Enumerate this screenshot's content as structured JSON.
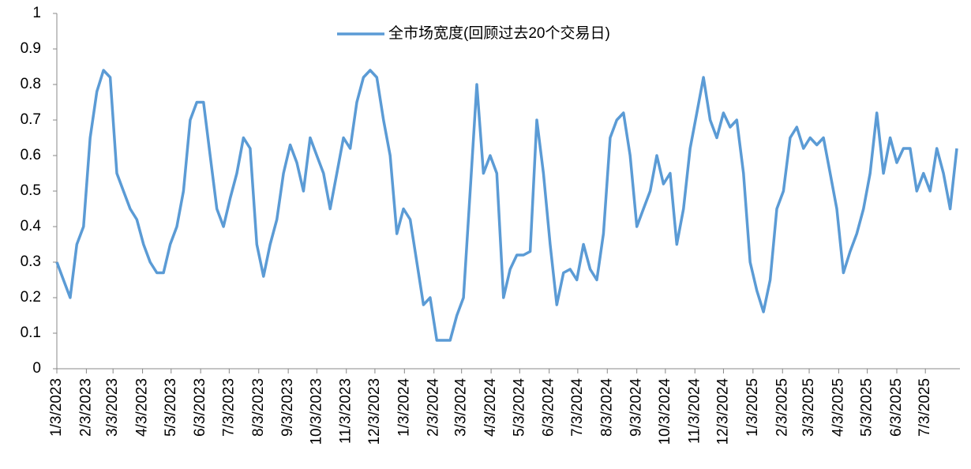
{
  "chart_data": {
    "type": "line",
    "x": [
      "1/3/2023",
      "1/10/2023",
      "1/17/2023",
      "1/24/2023",
      "1/31/2023",
      "2/7/2023",
      "2/14/2023",
      "2/21/2023",
      "2/28/2023",
      "3/7/2023",
      "3/14/2023",
      "3/21/2023",
      "3/28/2023",
      "4/4/2023",
      "4/11/2023",
      "4/18/2023",
      "4/25/2023",
      "5/2/2023",
      "5/9/2023",
      "5/16/2023",
      "5/23/2023",
      "5/30/2023",
      "6/6/2023",
      "6/13/2023",
      "6/20/2023",
      "6/27/2023",
      "7/4/2023",
      "7/11/2023",
      "7/18/2023",
      "7/25/2023",
      "8/1/2023",
      "8/8/2023",
      "8/15/2023",
      "8/22/2023",
      "8/29/2023",
      "9/5/2023",
      "9/12/2023",
      "9/19/2023",
      "9/26/2023",
      "10/3/2023",
      "10/10/2023",
      "10/17/2023",
      "10/24/2023",
      "10/31/2023",
      "11/7/2023",
      "11/14/2023",
      "11/21/2023",
      "11/28/2023",
      "12/5/2023",
      "12/12/2023",
      "12/19/2023",
      "12/26/2023",
      "1/2/2024",
      "1/9/2024",
      "1/16/2024",
      "1/23/2024",
      "1/30/2024",
      "2/6/2024",
      "2/13/2024",
      "2/20/2024",
      "2/27/2024",
      "3/5/2024",
      "3/12/2024",
      "3/19/2024",
      "3/26/2024",
      "4/2/2024",
      "4/9/2024",
      "4/16/2024",
      "4/23/2024",
      "4/30/2024",
      "5/7/2024",
      "5/14/2024",
      "5/21/2024",
      "5/28/2024",
      "6/4/2024",
      "6/11/2024",
      "6/18/2024",
      "6/25/2024",
      "7/2/2024",
      "7/9/2024",
      "7/16/2024",
      "7/23/2024",
      "7/30/2024",
      "8/6/2024",
      "8/13/2024",
      "8/20/2024",
      "8/27/2024",
      "9/3/2024",
      "9/10/2024",
      "9/17/2024",
      "9/24/2024",
      "10/1/2024",
      "10/8/2024",
      "10/15/2024",
      "10/22/2024",
      "10/29/2024",
      "11/5/2024",
      "11/12/2024",
      "11/19/2024",
      "11/26/2024",
      "12/3/2024",
      "12/10/2024",
      "12/17/2024",
      "12/24/2024",
      "12/31/2024",
      "1/7/2025",
      "1/14/2025",
      "1/21/2025",
      "1/28/2025",
      "2/4/2025",
      "2/11/2025",
      "2/18/2025",
      "2/25/2025",
      "3/4/2025",
      "3/11/2025",
      "3/18/2025",
      "3/25/2025",
      "4/1/2025",
      "4/8/2025",
      "4/15/2025",
      "4/22/2025",
      "4/29/2025",
      "5/6/2025",
      "5/13/2025",
      "5/20/2025",
      "5/27/2025",
      "6/3/2025",
      "6/10/2025",
      "6/17/2025",
      "6/24/2025",
      "7/1/2025",
      "7/8/2025",
      "7/15/2025",
      "7/22/2025",
      "7/29/2025",
      "8/5/2025"
    ],
    "series": [
      {
        "name": "全市场宽度(回顾过去20个交易日)",
        "color": "#5b9bd5",
        "values": [
          0.3,
          0.25,
          0.2,
          0.35,
          0.4,
          0.65,
          0.78,
          0.84,
          0.82,
          0.55,
          0.5,
          0.45,
          0.42,
          0.35,
          0.3,
          0.27,
          0.27,
          0.35,
          0.4,
          0.5,
          0.7,
          0.75,
          0.75,
          0.6,
          0.45,
          0.4,
          0.48,
          0.55,
          0.65,
          0.62,
          0.35,
          0.26,
          0.35,
          0.42,
          0.55,
          0.63,
          0.58,
          0.5,
          0.65,
          0.6,
          0.55,
          0.45,
          0.55,
          0.65,
          0.62,
          0.75,
          0.82,
          0.84,
          0.82,
          0.7,
          0.6,
          0.38,
          0.45,
          0.42,
          0.3,
          0.18,
          0.2,
          0.08,
          0.08,
          0.08,
          0.15,
          0.2,
          0.5,
          0.8,
          0.55,
          0.6,
          0.55,
          0.2,
          0.28,
          0.32,
          0.32,
          0.33,
          0.7,
          0.55,
          0.35,
          0.18,
          0.27,
          0.28,
          0.25,
          0.35,
          0.28,
          0.25,
          0.38,
          0.65,
          0.7,
          0.72,
          0.6,
          0.4,
          0.45,
          0.5,
          0.6,
          0.52,
          0.55,
          0.35,
          0.45,
          0.62,
          0.72,
          0.82,
          0.7,
          0.65,
          0.72,
          0.68,
          0.7,
          0.55,
          0.3,
          0.22,
          0.16,
          0.25,
          0.45,
          0.5,
          0.65,
          0.68,
          0.62,
          0.65,
          0.63,
          0.65,
          0.55,
          0.45,
          0.27,
          0.33,
          0.38,
          0.45,
          0.55,
          0.72,
          0.55,
          0.65,
          0.58,
          0.62,
          0.62,
          0.5,
          0.55,
          0.5,
          0.62,
          0.55,
          0.45,
          0.62
        ]
      }
    ],
    "xticks": [
      "1/3/2023",
      "2/3/2023",
      "3/3/2023",
      "4/3/2023",
      "5/3/2023",
      "6/3/2023",
      "7/3/2023",
      "8/3/2023",
      "9/3/2023",
      "10/3/2023",
      "11/3/2023",
      "12/3/2023",
      "1/3/2024",
      "2/3/2024",
      "3/3/2024",
      "4/3/2024",
      "5/3/2024",
      "6/3/2024",
      "7/3/2024",
      "8/3/2024",
      "9/3/2024",
      "10/3/2024",
      "11/3/2024",
      "12/3/2024",
      "1/3/2025",
      "2/3/2025",
      "3/3/2025",
      "4/3/2025",
      "5/3/2025",
      "6/3/2025",
      "7/3/2025"
    ],
    "ylim": [
      0,
      1
    ],
    "yticks": [
      0,
      0.1,
      0.2,
      0.3,
      0.4,
      0.5,
      0.6,
      0.7,
      0.8,
      0.9,
      1
    ],
    "grid": false,
    "legend": "top"
  }
}
